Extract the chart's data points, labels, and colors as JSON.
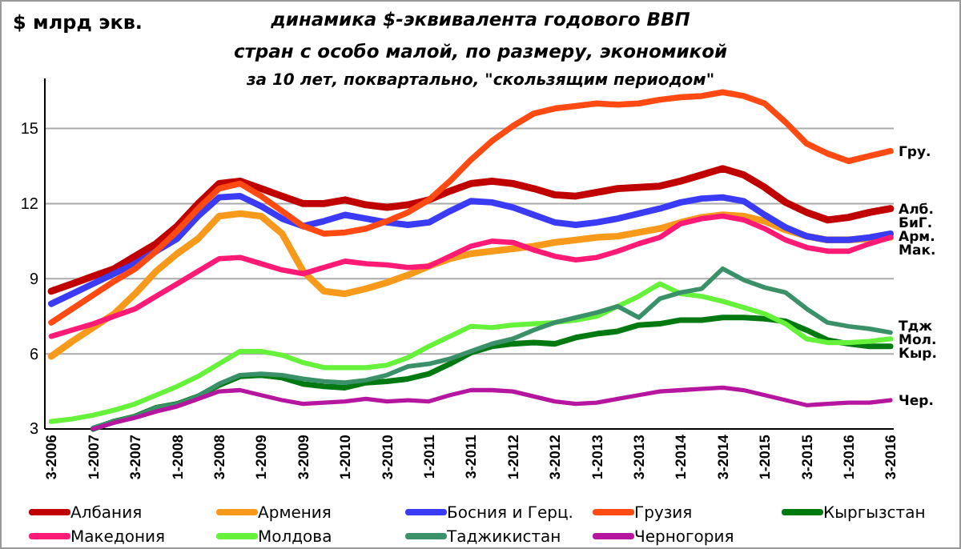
{
  "chart_data": {
    "type": "line",
    "title": "динамика $-эквивалента  годового  ВВП\nстран с особо малой, по размеру, экономикой",
    "subtitle": "за 10 лет, поквартально, \"скользящим периодом\"",
    "ylabel": "$ млрд экв.",
    "categories": [
      "3-2006",
      null,
      "1-2007",
      null,
      "3-2007",
      null,
      "1-2008",
      null,
      "3-2008",
      null,
      "1-2009",
      null,
      "3-2009",
      null,
      "1-2010",
      null,
      "3-2010",
      null,
      "1-2011",
      null,
      "3-2011",
      null,
      "1-2012",
      null,
      "3-2012",
      null,
      "1-2013",
      null,
      "3-2013",
      null,
      "1-2014",
      null,
      "3-2014",
      null,
      "1-2015",
      null,
      "3-2015",
      null,
      "1-2016",
      null,
      "3-2016"
    ],
    "ylim": [
      3,
      17
    ],
    "yticks": [
      3,
      6,
      9,
      12,
      15
    ],
    "grid": "y",
    "legend": "bottom",
    "marker": "none",
    "line_style": "solid",
    "series": [
      {
        "name": "Албания",
        "color": "#c00000",
        "values": [
          8.5,
          8.8,
          9.1,
          9.4,
          9.9,
          10.4,
          11.1,
          12.0,
          12.8,
          12.9,
          12.6,
          12.3,
          12.0,
          12.0,
          12.15,
          11.95,
          11.85,
          11.95,
          12.15,
          12.5,
          12.8,
          12.9,
          12.8,
          12.6,
          12.35,
          12.3,
          12.45,
          12.6,
          12.65,
          12.7,
          12.9,
          13.15,
          13.4,
          13.15,
          12.65,
          12.05,
          11.65,
          11.35,
          11.45,
          11.65,
          11.8
        ]
      },
      {
        "name": "Армения",
        "color": "#f79a1c",
        "values": [
          5.9,
          6.5,
          7.05,
          7.6,
          8.4,
          9.3,
          10.0,
          10.6,
          11.5,
          11.6,
          11.5,
          10.8,
          9.3,
          8.5,
          8.4,
          8.6,
          8.85,
          9.15,
          9.5,
          9.8,
          10.0,
          10.1,
          10.2,
          10.3,
          10.45,
          10.55,
          10.65,
          10.7,
          10.85,
          11.0,
          11.25,
          11.45,
          11.55,
          11.5,
          11.3,
          10.95,
          10.7,
          10.55,
          10.55,
          10.6,
          10.65
        ]
      },
      {
        "name": "Босния  и  Герц.",
        "color": "#3b3bf5",
        "values": [
          8.0,
          8.4,
          8.8,
          9.2,
          9.6,
          10.1,
          10.6,
          11.5,
          12.25,
          12.3,
          11.9,
          11.4,
          11.1,
          11.3,
          11.55,
          11.4,
          11.25,
          11.15,
          11.25,
          11.7,
          12.1,
          12.05,
          11.85,
          11.55,
          11.25,
          11.15,
          11.25,
          11.4,
          11.6,
          11.8,
          12.05,
          12.2,
          12.25,
          12.1,
          11.55,
          11.05,
          10.7,
          10.55,
          10.55,
          10.65,
          10.8
        ]
      },
      {
        "name": "Грузия",
        "color": "#ff4a14",
        "values": [
          7.25,
          7.8,
          8.35,
          8.9,
          9.4,
          10.1,
          10.9,
          11.8,
          12.6,
          12.8,
          12.3,
          11.7,
          11.1,
          10.8,
          10.85,
          11.0,
          11.3,
          11.65,
          12.15,
          12.9,
          13.75,
          14.5,
          15.1,
          15.6,
          15.8,
          15.9,
          16.0,
          15.95,
          16.0,
          16.15,
          16.25,
          16.3,
          16.45,
          16.3,
          16.0,
          15.25,
          14.4,
          14.0,
          13.7,
          13.9,
          14.1
        ]
      },
      {
        "name": "Кыргызстан",
        "color": "#007a10",
        "values": [
          null,
          null,
          3.0,
          3.3,
          3.5,
          3.85,
          4.0,
          4.3,
          4.75,
          5.1,
          5.15,
          5.05,
          4.8,
          4.7,
          4.65,
          4.85,
          4.9,
          5.0,
          5.2,
          5.6,
          6.05,
          6.3,
          6.4,
          6.45,
          6.4,
          6.65,
          6.8,
          6.9,
          7.15,
          7.2,
          7.35,
          7.35,
          7.45,
          7.45,
          7.4,
          7.3,
          6.95,
          6.55,
          6.4,
          6.3,
          6.3
        ]
      },
      {
        "name": "Македония",
        "color": "#ff1a75",
        "values": [
          6.7,
          6.95,
          7.2,
          7.5,
          7.8,
          8.3,
          8.8,
          9.3,
          9.8,
          9.85,
          9.6,
          9.35,
          9.2,
          9.45,
          9.7,
          9.6,
          9.55,
          9.45,
          9.5,
          9.9,
          10.3,
          10.5,
          10.45,
          10.15,
          9.9,
          9.75,
          9.85,
          10.1,
          10.4,
          10.65,
          11.2,
          11.4,
          11.5,
          11.35,
          11.0,
          10.55,
          10.25,
          10.1,
          10.1,
          10.4,
          10.65
        ]
      },
      {
        "name": "Молдова",
        "color": "#66f23a",
        "values": [
          3.3,
          3.4,
          3.55,
          3.75,
          4.0,
          4.35,
          4.7,
          5.1,
          5.6,
          6.1,
          6.1,
          5.95,
          5.65,
          5.45,
          5.45,
          5.45,
          5.55,
          5.85,
          6.3,
          6.7,
          7.1,
          7.05,
          7.15,
          7.2,
          7.25,
          7.35,
          7.5,
          7.9,
          8.3,
          8.8,
          8.4,
          8.3,
          8.1,
          7.85,
          7.6,
          7.2,
          6.6,
          6.45,
          6.45,
          6.5,
          6.6
        ]
      },
      {
        "name": "Таджикистан",
        "color": "#3a9068",
        "values": [
          null,
          null,
          3.05,
          3.3,
          3.5,
          3.85,
          4.0,
          4.3,
          4.8,
          5.15,
          5.2,
          5.15,
          5.0,
          4.9,
          4.85,
          4.95,
          5.15,
          5.5,
          5.6,
          5.8,
          6.1,
          6.4,
          6.6,
          6.95,
          7.25,
          7.45,
          7.65,
          7.9,
          7.45,
          8.2,
          8.45,
          8.6,
          9.4,
          8.95,
          8.65,
          8.45,
          7.8,
          7.25,
          7.1,
          7.0,
          6.85
        ]
      },
      {
        "name": "Черногория",
        "color": "#b5159f",
        "values": [
          null,
          null,
          3.0,
          3.25,
          3.45,
          3.7,
          3.9,
          4.2,
          4.5,
          4.55,
          4.35,
          4.15,
          4.0,
          4.05,
          4.1,
          4.2,
          4.1,
          4.15,
          4.1,
          4.35,
          4.55,
          4.55,
          4.5,
          4.3,
          4.1,
          4.0,
          4.05,
          4.2,
          4.35,
          4.5,
          4.55,
          4.6,
          4.65,
          4.55,
          4.35,
          4.15,
          3.95,
          4.0,
          4.05,
          4.05,
          4.15
        ]
      }
    ],
    "annotations": [
      {
        "text": "Гру.",
        "x": "3-2016",
        "y": 14.1
      },
      {
        "text": "Алб.",
        "x": "3-2016",
        "y": 11.8
      },
      {
        "text": "БиГ.",
        "x": "3-2016",
        "y": 10.8
      },
      {
        "text": "Арм.",
        "x": "3-2016",
        "y": 10.65
      },
      {
        "text": "Мак.",
        "x": "3-2016",
        "y": 10.65
      },
      {
        "text": "Тдж",
        "x": "3-2016",
        "y": 6.85
      },
      {
        "text": "Мол.",
        "x": "3-2016",
        "y": 6.6
      },
      {
        "text": "Кыр.",
        "x": "3-2016",
        "y": 6.3
      },
      {
        "text": "Чер.",
        "x": "3-2016",
        "y": 4.15
      }
    ]
  }
}
